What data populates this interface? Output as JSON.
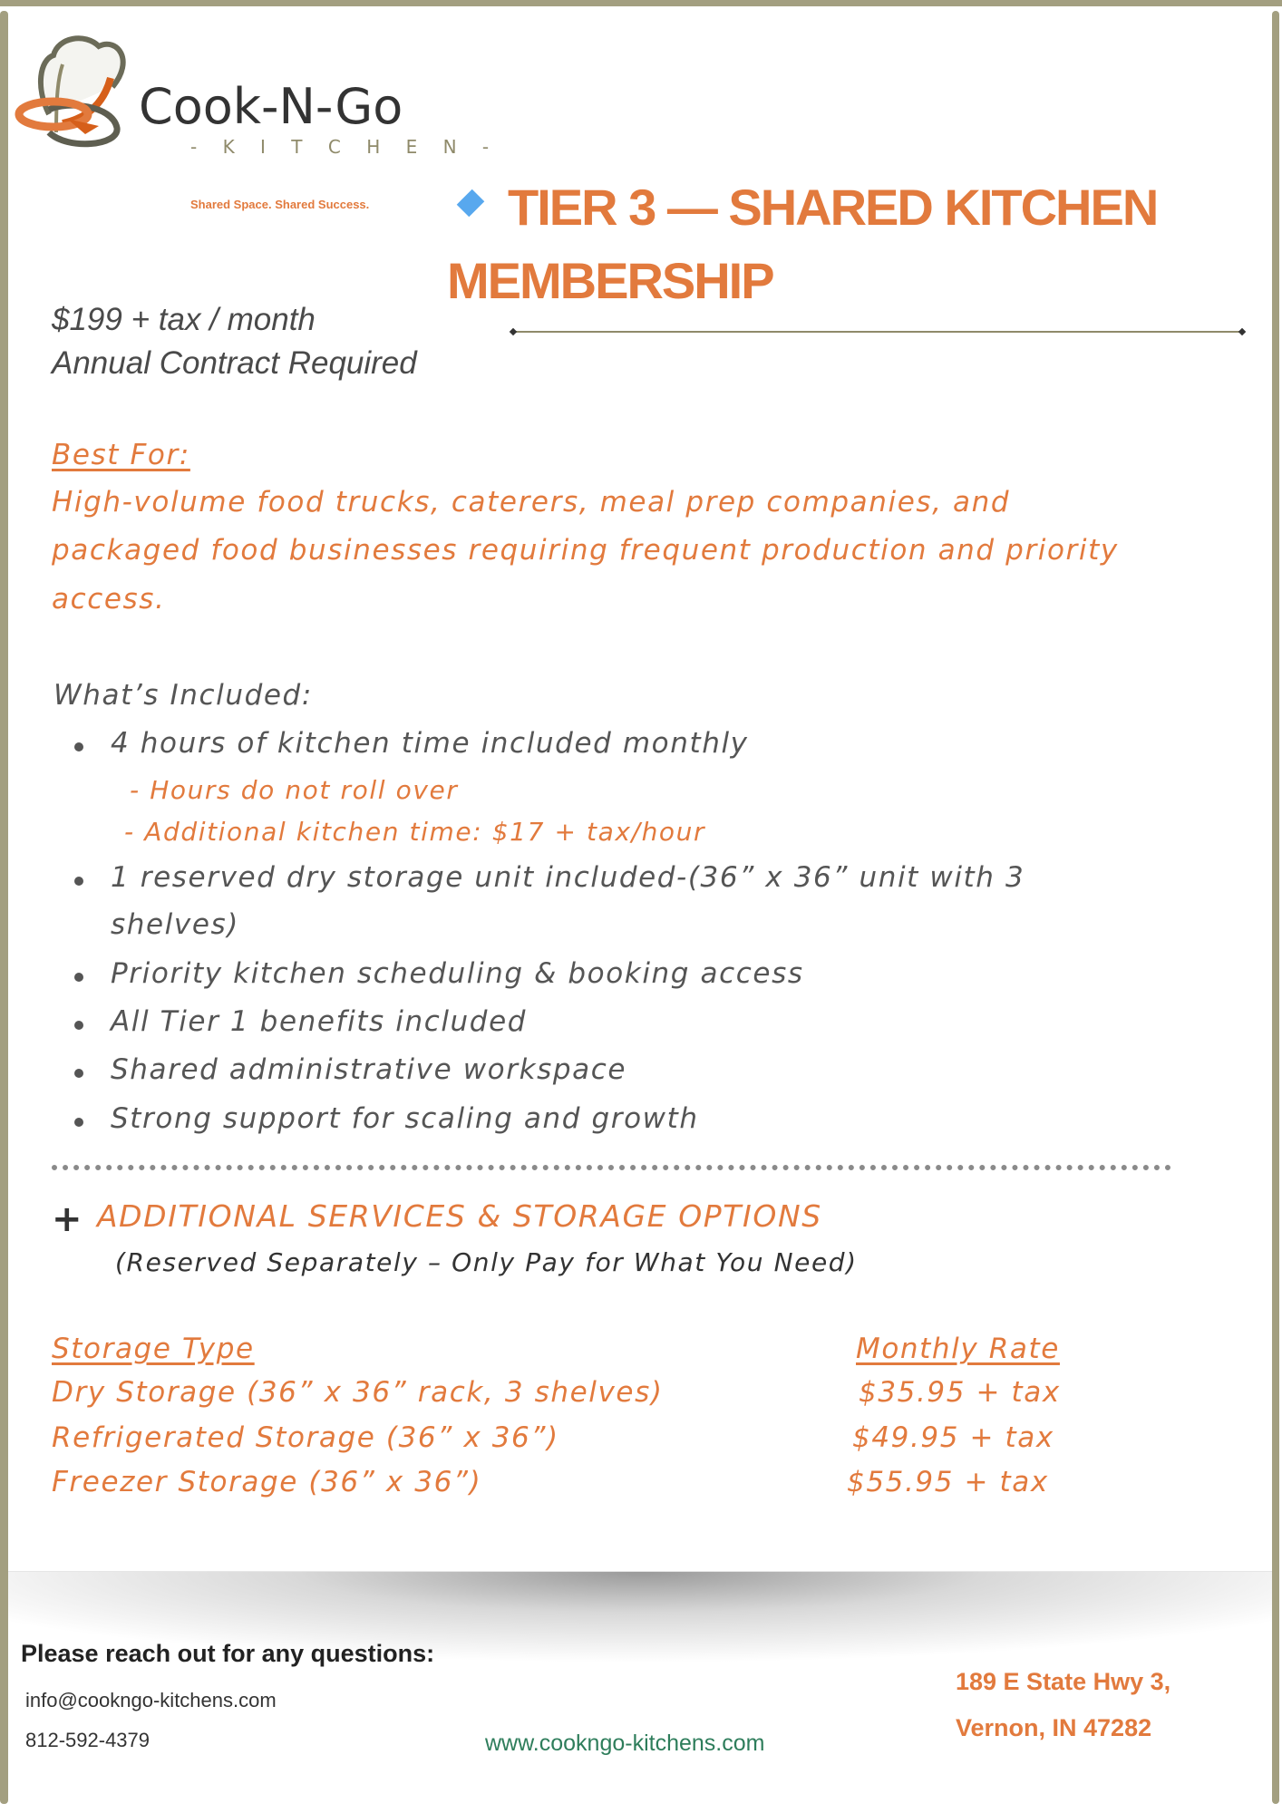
{
  "logo": {
    "brand": "Cook-N-Go",
    "sub": "- K I T C H E N -",
    "tagline": "Shared Space. Shared Success."
  },
  "title": {
    "line1": "TIER 3 — SHARED KITCHEN",
    "line2": "MEMBERSHIP",
    "icon": "blue-diamond-icon",
    "accent_color": "#e27a3d"
  },
  "pricing": {
    "price": "$199 + tax / month",
    "contract": "Annual Contract Required"
  },
  "best_for": {
    "heading": "Best For:",
    "lines": [
      " High-volume food trucks, caterers, meal prep companies, and",
      "packaged food businesses requiring frequent production and priority",
      "access."
    ]
  },
  "included": {
    "heading": "What’s Included:",
    "items": [
      "4 hours of kitchen time included monthly",
      "1 reserved dry storage unit included-(36” x 36” unit with 3",
      "Priority kitchen scheduling & booking access",
      "All Tier 1 benefits included",
      "Shared administrative workspace",
      "Strong support for scaling and growth"
    ],
    "item2_cont": "shelves)",
    "sub_items": [
      "- Hours do not roll over",
      "- Additional kitchen time: $17 + tax/hour"
    ]
  },
  "additional": {
    "heading": "ADDITIONAL SERVICES & STORAGE OPTIONS",
    "subheading": "(Reserved Separately – Only Pay for What You Need)",
    "icon": "plus-icon"
  },
  "storage_table": {
    "headers": [
      "Storage Type ",
      "Monthly Rate"
    ],
    "rows": [
      [
        "Dry Storage (36” x 36” rack, 3 shelves)",
        "$35.95 + tax"
      ],
      [
        "Refrigerated Storage (36” x 36”)",
        "$49.95 + tax"
      ],
      [
        "Freezer Storage (36” x 36”)",
        "$55.95 + tax"
      ]
    ]
  },
  "footer": {
    "heading": "Please reach out for any questions:",
    "email": "info@cookngo-kitchens.com",
    "phone": "812-592-4379",
    "website": "www.cookngo-kitchens.com",
    "address1": "189 E State Hwy 3,",
    "address2": "Vernon, IN 47282"
  }
}
